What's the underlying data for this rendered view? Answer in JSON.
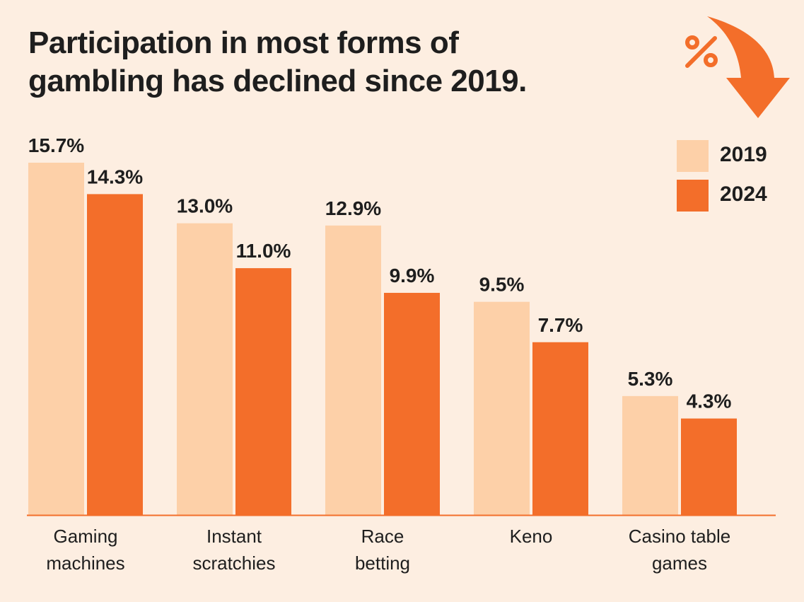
{
  "chart_data": {
    "type": "bar",
    "title": "Participation in most forms of gambling has declined since 2019.",
    "title_lines": [
      "Participation in most forms of",
      "gambling has declined since 2019."
    ],
    "categories": [
      [
        "Gaming",
        "machines"
      ],
      [
        "Instant",
        "scratchies"
      ],
      [
        "Race",
        "betting"
      ],
      [
        "Keno"
      ],
      [
        "Casino table",
        "games"
      ]
    ],
    "series": [
      {
        "name": "2019",
        "color": "#FDD0A8",
        "values": [
          15.7,
          13.0,
          12.9,
          9.5,
          5.3
        ],
        "labels": [
          "15.7%",
          "13.0%",
          "12.9%",
          "9.5%",
          "5.3%"
        ]
      },
      {
        "name": "2024",
        "color": "#F36E2A",
        "values": [
          14.3,
          11.0,
          9.9,
          7.7,
          4.3
        ],
        "labels": [
          "14.3%",
          "11.0%",
          "9.9%",
          "7.7%",
          "4.3%"
        ]
      }
    ],
    "xlabel": "",
    "ylabel": "",
    "ylim": [
      0,
      15.7
    ],
    "grid": false,
    "legend": "top-right",
    "icon": "percent-down-arrow-icon"
  }
}
